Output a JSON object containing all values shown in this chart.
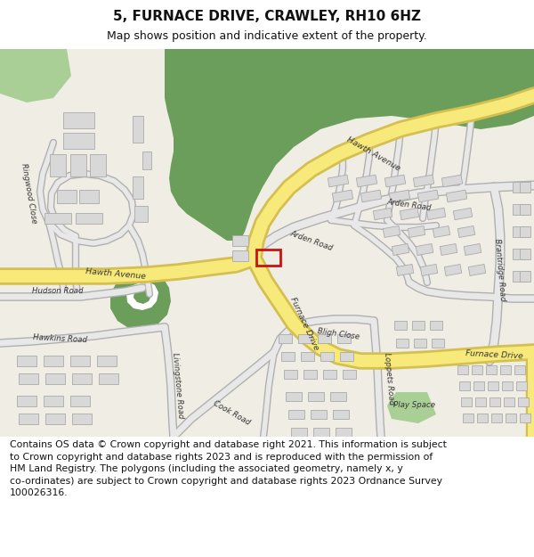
{
  "title": "5, FURNACE DRIVE, CRAWLEY, RH10 6HZ",
  "subtitle": "Map shows position and indicative extent of the property.",
  "footer_line1": "Contains OS data © Crown copyright and database right 2021. This information is subject",
  "footer_line2": "to Crown copyright and database rights 2023 and is reproduced with the permission of",
  "footer_line3": "HM Land Registry. The polygons (including the associated geometry, namely x, y",
  "footer_line4": "co-ordinates) are subject to Crown copyright and database rights 2023 Ordnance Survey",
  "footer_line5": "100026316.",
  "bg_map_color": "#f0ede5",
  "road_yellow": "#f7e97a",
  "road_yellow_border": "#d4c050",
  "green_dark": "#6a9e5a",
  "green_light": "#aacf96",
  "building_fill": "#d8d8d8",
  "building_edge": "#aaaaaa",
  "road_gray_fill": "#e8e8e8",
  "road_gray_edge": "#b0b0b0",
  "property_color": "#cc1111",
  "title_fontsize": 11,
  "subtitle_fontsize": 9,
  "footer_fontsize": 7.8,
  "label_fontsize": 6.2
}
